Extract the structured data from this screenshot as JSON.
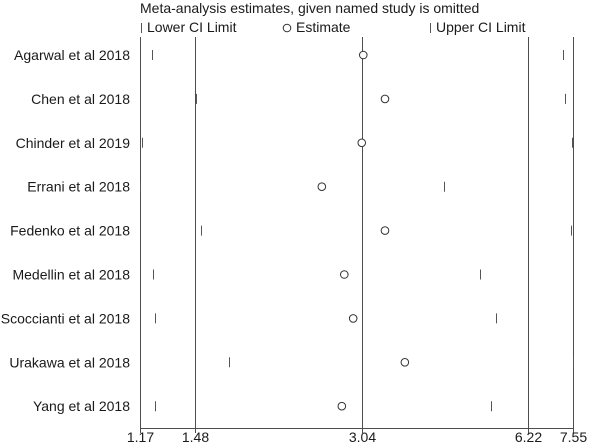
{
  "chart_data": {
    "type": "scatter",
    "title": "Meta-analysis estimates, given named study is omitted",
    "legend": {
      "placement": "top",
      "lower_ci": "Lower CI Limit",
      "estimate": "Estimate",
      "upper_ci": "Upper CI Limit"
    },
    "studies": [
      {
        "name": "Agarwal et al 2018",
        "lower": 1.23,
        "estimate": 3.06,
        "upper": 7.24
      },
      {
        "name": "Chen et al 2018",
        "lower": 1.49,
        "estimate": 3.36,
        "upper": 7.31
      },
      {
        "name": "Chinder et al 2019",
        "lower": 1.18,
        "estimate": 3.04,
        "upper": 7.53
      },
      {
        "name": "Errani et al 2018",
        "lower": 1.17,
        "estimate": 2.56,
        "upper": 4.34
      },
      {
        "name": "Fedenko et al 2018",
        "lower": 1.52,
        "estimate": 3.36,
        "upper": 7.49
      },
      {
        "name": "Medellin et al 2018",
        "lower": 1.24,
        "estimate": 2.82,
        "upper": 5.06
      },
      {
        "name": "Scoccianti et al 2018",
        "lower": 1.25,
        "estimate": 2.93,
        "upper": 5.43
      },
      {
        "name": "Urakawa et al 2018",
        "lower": 1.72,
        "estimate": 3.66,
        "upper": 7.55
      },
      {
        "name": "Yang et al 2018",
        "lower": 1.25,
        "estimate": 2.79,
        "upper": 5.3
      }
    ],
    "x_ticks": [
      1.17,
      1.48,
      3.04,
      6.22,
      7.55
    ],
    "x_tick_labels": [
      "1.17",
      "1.48",
      "3.04",
      "6.22",
      "7.55"
    ],
    "reference_lines": [
      1.17,
      1.48,
      3.04,
      6.22,
      7.55
    ],
    "xlim": [
      1.17,
      7.55
    ],
    "x_scale": "log",
    "grid": false
  }
}
